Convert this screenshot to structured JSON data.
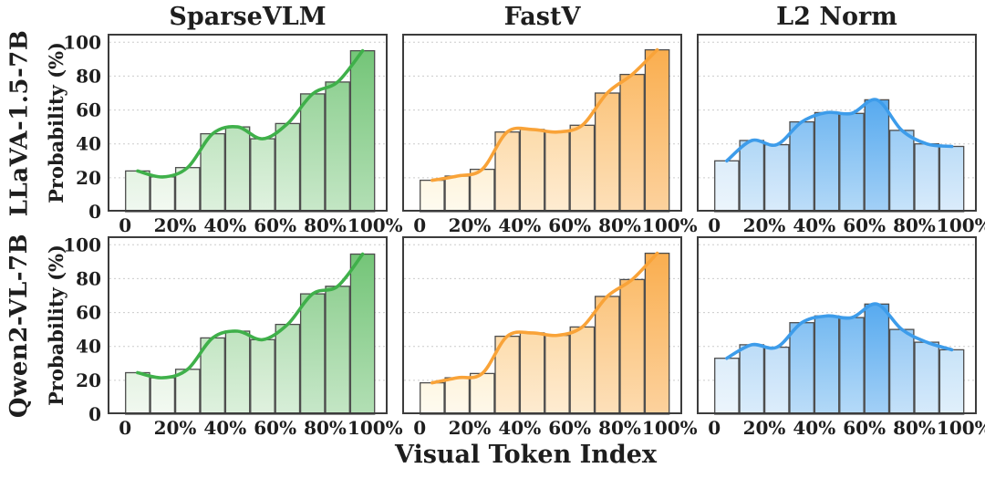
{
  "figure": {
    "xlabel": "Visual Token Index",
    "ylabel": "Probability (%)",
    "row_labels": [
      "LLaVA-1.5-7B",
      "Qwen2-VL-7B"
    ],
    "col_titles": [
      "SparseVLM",
      "FastV",
      "L2 Norm"
    ],
    "x_tick_labels": [
      "0",
      "20%",
      "40%",
      "60%",
      "80%",
      "100%"
    ],
    "x_tick_values": [
      0,
      20,
      40,
      60,
      80,
      100
    ],
    "y_tick_labels": [
      "0",
      "20",
      "40",
      "60",
      "80",
      "100"
    ],
    "y_tick_values": [
      0,
      20,
      40,
      60,
      80,
      100
    ],
    "y_gridlines": [
      20,
      40,
      60,
      80,
      100
    ],
    "ylim": [
      0,
      105
    ],
    "xlim": [
      -7,
      105
    ],
    "grid": "horizontal-dashed",
    "text_color": "#1e1e1e",
    "axis_border_color": "#3c3c3c",
    "bar_border_color": "#4d4d4d",
    "gridline_color": "#cccccc"
  },
  "chart_data": [
    {
      "type": "bar",
      "row": "LLaVA-1.5-7B",
      "method": "SparseVLM",
      "x_bin_centers_pct": [
        5,
        15,
        25,
        35,
        45,
        55,
        65,
        75,
        85,
        95
      ],
      "values_pct": [
        24,
        20.5,
        26,
        46,
        50,
        43,
        52,
        69.5,
        76.5,
        95
      ],
      "overlay_line": "smoothed spline through bar tops",
      "colors": {
        "bar_light": "#EAF5E8",
        "bar_dark": "#74C578",
        "line": "#3FB04A"
      }
    },
    {
      "type": "bar",
      "row": "LLaVA-1.5-7B",
      "method": "FastV",
      "x_bin_centers_pct": [
        5,
        15,
        25,
        35,
        45,
        55,
        65,
        75,
        85,
        95
      ],
      "values_pct": [
        18.5,
        21,
        25,
        47,
        48.5,
        47,
        51,
        70,
        81,
        95.5
      ],
      "overlay_line": "smoothed spline through bar tops",
      "colors": {
        "bar_light": "#FEF7E4",
        "bar_dark": "#FAAE4F",
        "line": "#F9A338"
      }
    },
    {
      "type": "bar",
      "row": "LLaVA-1.5-7B",
      "method": "L2 Norm",
      "x_bin_centers_pct": [
        5,
        15,
        25,
        35,
        45,
        55,
        65,
        75,
        85,
        95
      ],
      "values_pct": [
        30,
        42,
        39.5,
        53,
        58.5,
        58,
        66,
        48,
        40,
        38.5
      ],
      "overlay_line": "smoothed spline through bar tops",
      "colors": {
        "bar_light": "#DDEDFA",
        "bar_dark": "#57AAEF",
        "line": "#3D9CEA"
      }
    },
    {
      "type": "bar",
      "row": "Qwen2-VL-7B",
      "method": "SparseVLM",
      "x_bin_centers_pct": [
        5,
        15,
        25,
        35,
        45,
        55,
        65,
        75,
        85,
        95
      ],
      "values_pct": [
        24.5,
        21.5,
        26.5,
        45,
        49,
        44,
        53,
        71,
        75.5,
        94.5
      ],
      "overlay_line": "smoothed spline through bar tops",
      "colors": {
        "bar_light": "#EAF5E8",
        "bar_dark": "#74C578",
        "line": "#3FB04A"
      }
    },
    {
      "type": "bar",
      "row": "Qwen2-VL-7B",
      "method": "FastV",
      "x_bin_centers_pct": [
        5,
        15,
        25,
        35,
        45,
        55,
        65,
        75,
        85,
        95
      ],
      "values_pct": [
        18.5,
        21.5,
        24,
        46,
        48,
        46.5,
        51.5,
        69.5,
        79.5,
        95
      ],
      "overlay_line": "smoothed spline through bar tops",
      "colors": {
        "bar_light": "#FEF7E4",
        "bar_dark": "#FAAE4F",
        "line": "#F9A338"
      }
    },
    {
      "type": "bar",
      "row": "Qwen2-VL-7B",
      "method": "L2 Norm",
      "x_bin_centers_pct": [
        5,
        15,
        25,
        35,
        45,
        55,
        65,
        75,
        85,
        95
      ],
      "values_pct": [
        33,
        41,
        39.5,
        54,
        58,
        57,
        65,
        50,
        42.5,
        38
      ],
      "overlay_line": "smoothed spline through bar tops",
      "colors": {
        "bar_light": "#DDEDFA",
        "bar_dark": "#57AAEF",
        "line": "#3D9CEA"
      }
    }
  ]
}
